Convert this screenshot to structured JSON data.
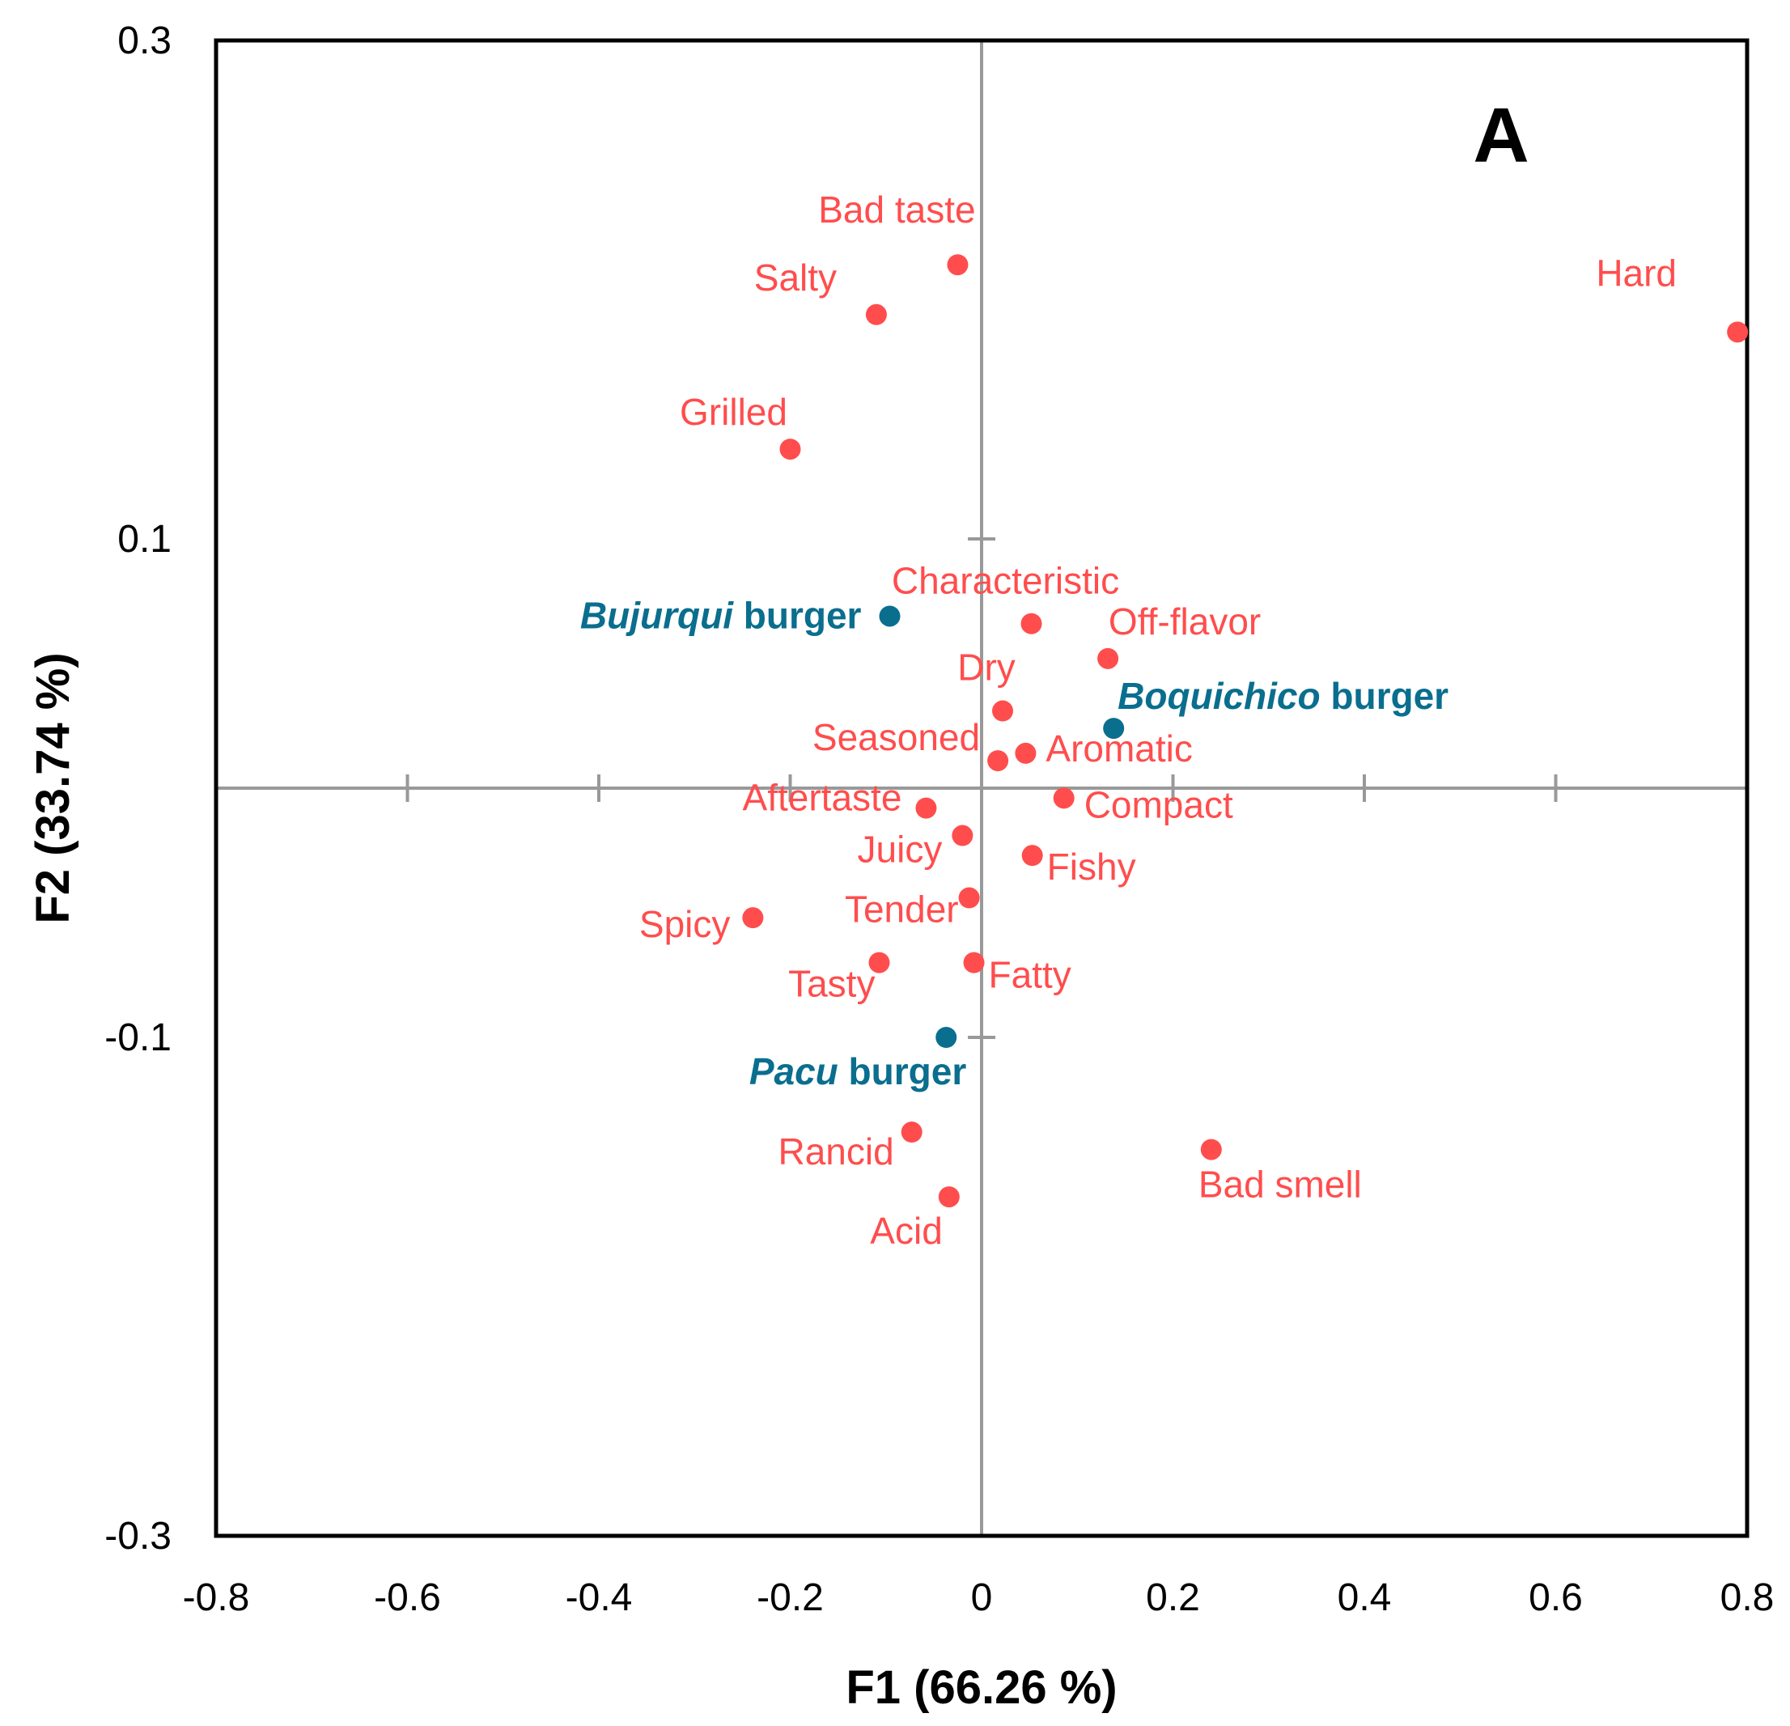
{
  "chart_data": {
    "type": "scatter",
    "title": "",
    "panel_label": "A",
    "xlabel": "F1 (66.26 %)",
    "ylabel": "F2 (33.74 %)",
    "xlim": [
      -0.8,
      0.8
    ],
    "ylim": [
      -0.3,
      0.3
    ],
    "xticks": [
      "-0.8",
      "-0.6",
      "-0.4",
      "-0.2",
      "0",
      "0.2",
      "0.4",
      "0.6",
      "0.8"
    ],
    "yticks": [
      "0.3",
      "0.1",
      "-0.1",
      "-0.3"
    ],
    "colors": {
      "attributes": "#ff4d4d",
      "products": "#0a6e8e",
      "axes": "#999999"
    },
    "series": [
      {
        "name": "Attributes",
        "points": [
          {
            "label": "Bad taste",
            "x": -0.025,
            "y": 0.21
          },
          {
            "label": "Salty",
            "x": -0.11,
            "y": 0.19
          },
          {
            "label": "Hard",
            "x": 0.79,
            "y": 0.183
          },
          {
            "label": "Grilled",
            "x": -0.2,
            "y": 0.136
          },
          {
            "label": "Characteristic",
            "x": 0.052,
            "y": 0.066
          },
          {
            "label": "Off-flavor",
            "x": 0.132,
            "y": 0.052
          },
          {
            "label": "Dry",
            "x": 0.022,
            "y": 0.031
          },
          {
            "label": "Seasoned",
            "x": 0.017,
            "y": 0.011
          },
          {
            "label": "Aromatic",
            "x": 0.046,
            "y": 0.014
          },
          {
            "label": "Aftertaste",
            "x": -0.058,
            "y": -0.008
          },
          {
            "label": "Compact",
            "x": 0.086,
            "y": -0.004
          },
          {
            "label": "Juicy",
            "x": -0.02,
            "y": -0.019
          },
          {
            "label": "Fishy",
            "x": 0.053,
            "y": -0.027
          },
          {
            "label": "Tender",
            "x": -0.013,
            "y": -0.044
          },
          {
            "label": "Spicy",
            "x": -0.239,
            "y": -0.052
          },
          {
            "label": "Tasty",
            "x": -0.107,
            "y": -0.07
          },
          {
            "label": "Fatty",
            "x": -0.008,
            "y": -0.07
          },
          {
            "label": "Rancid",
            "x": -0.073,
            "y": -0.138
          },
          {
            "label": "Bad smell",
            "x": 0.24,
            "y": -0.145
          },
          {
            "label": "Acid",
            "x": -0.034,
            "y": -0.164
          }
        ]
      },
      {
        "name": "Products",
        "points": [
          {
            "label_italic": "Bujurqui",
            "label_rest": " burger",
            "x": -0.096,
            "y": 0.069
          },
          {
            "label_italic": "Boquichico",
            "label_rest": " burger",
            "x": 0.138,
            "y": 0.024
          },
          {
            "label_italic": "Pacu",
            "label_rest": " burger",
            "x": -0.037,
            "y": -0.1
          }
        ]
      }
    ]
  }
}
